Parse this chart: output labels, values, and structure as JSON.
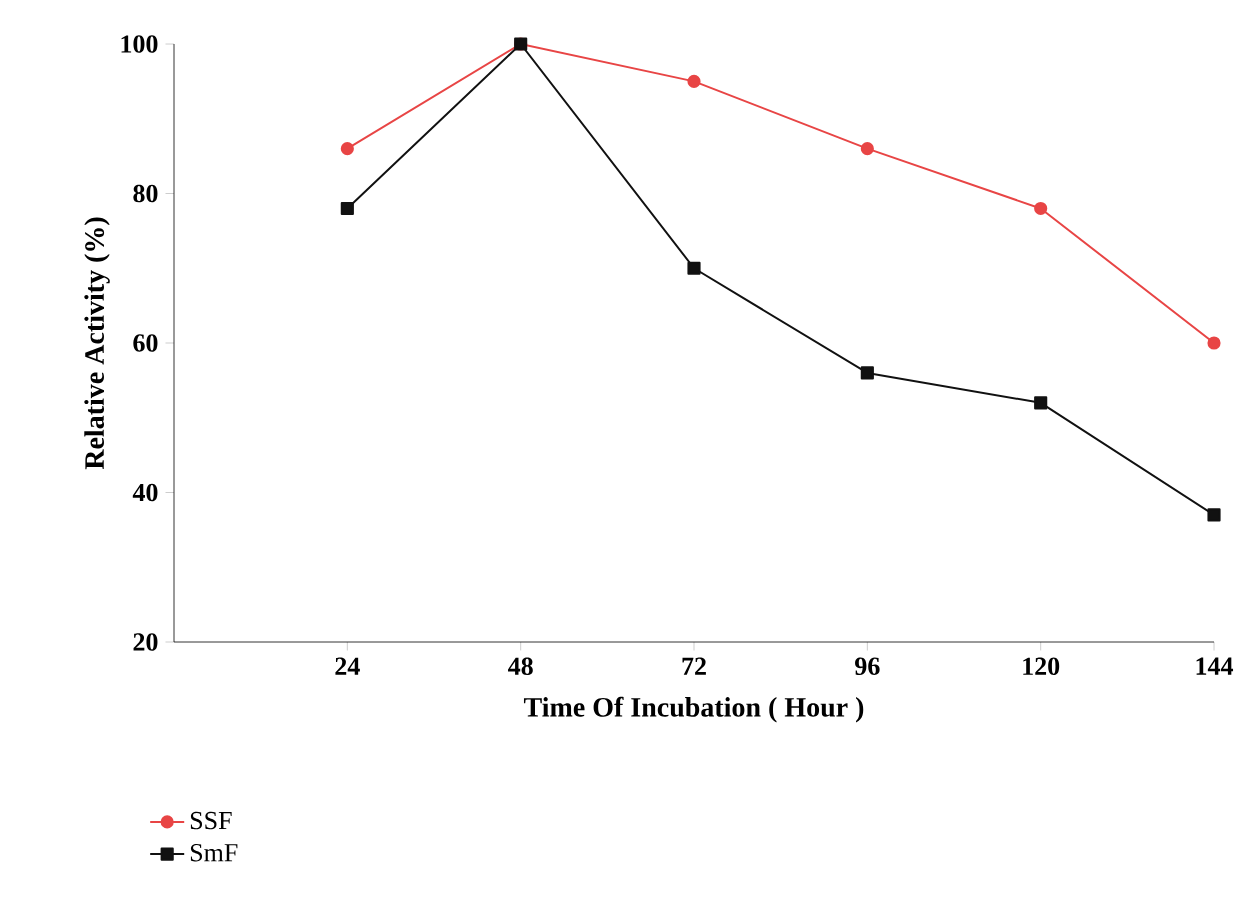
{
  "chart_data": {
    "type": "line",
    "xlabel": "Time Of Incubation ( Hour )",
    "ylabel": "Relative Activity (%)",
    "x": [
      24,
      48,
      72,
      96,
      120,
      144
    ],
    "series": [
      {
        "name": "SSF",
        "color": "#e84545",
        "marker": "circle",
        "values": [
          86,
          100,
          95,
          86,
          78,
          60
        ]
      },
      {
        "name": "SmF",
        "color": "#111111",
        "marker": "square",
        "values": [
          78,
          100,
          70,
          56,
          52,
          37
        ]
      }
    ],
    "xlim": [
      0,
      144
    ],
    "xticks": [
      24,
      48,
      72,
      96,
      120,
      144
    ],
    "ylim": [
      20,
      100
    ],
    "yticks": [
      20,
      40,
      60,
      80,
      100
    ],
    "grid": false,
    "legend": "bottom left",
    "line_style": "solid"
  }
}
